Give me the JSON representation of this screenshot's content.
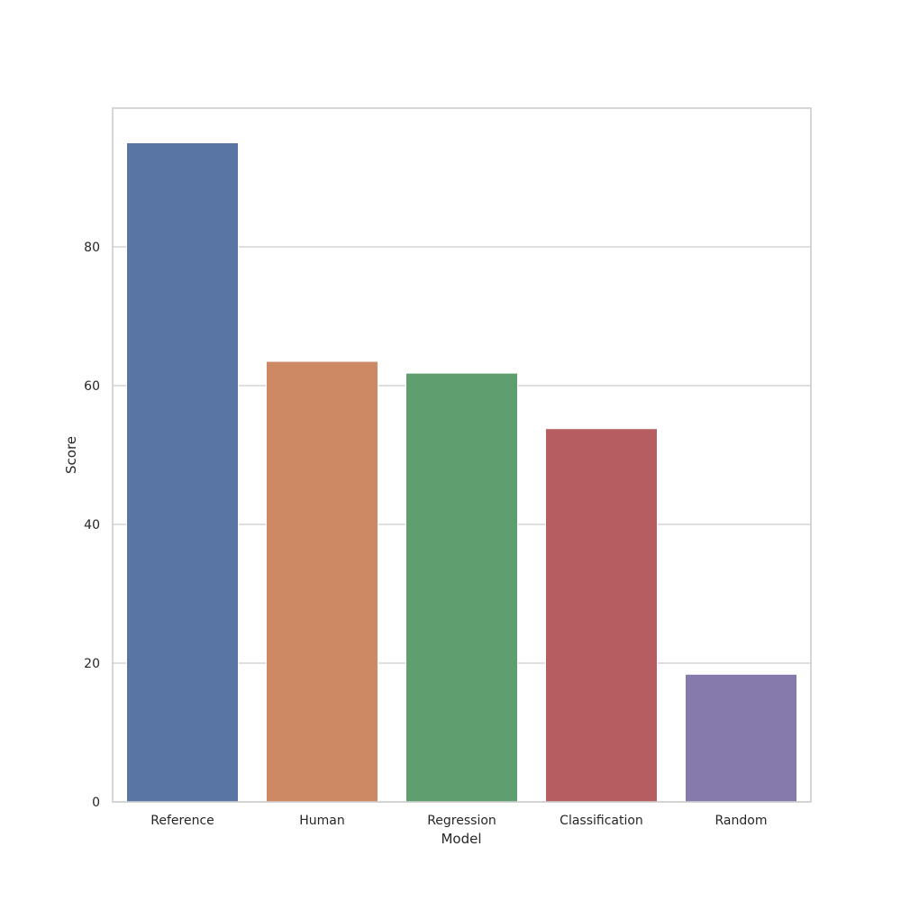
{
  "chart_data": {
    "type": "bar",
    "title": "",
    "xlabel": "Model",
    "ylabel": "Score",
    "categories": [
      "Reference",
      "Human",
      "Regression",
      "Classification",
      "Random"
    ],
    "values": [
      95.0,
      63.5,
      61.8,
      53.8,
      18.4
    ],
    "colors": [
      "#5975a4",
      "#cc8963",
      "#5f9e6e",
      "#b55d60",
      "#857aab"
    ],
    "ylim": [
      0,
      100
    ],
    "yticks": [
      0,
      20,
      40,
      60,
      80
    ],
    "grid": true,
    "legend": "none"
  }
}
